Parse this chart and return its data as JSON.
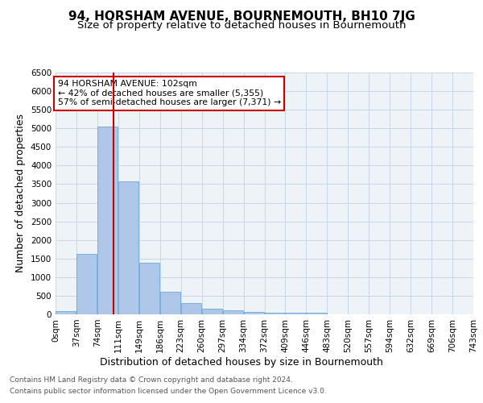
{
  "title": "94, HORSHAM AVENUE, BOURNEMOUTH, BH10 7JG",
  "subtitle": "Size of property relative to detached houses in Bournemouth",
  "xlabel": "Distribution of detached houses by size in Bournemouth",
  "ylabel": "Number of detached properties",
  "footer_line1": "Contains HM Land Registry data © Crown copyright and database right 2024.",
  "footer_line2": "Contains public sector information licensed under the Open Government Licence v3.0.",
  "bin_labels": [
    "0sqm",
    "37sqm",
    "74sqm",
    "111sqm",
    "149sqm",
    "186sqm",
    "223sqm",
    "260sqm",
    "297sqm",
    "334sqm",
    "372sqm",
    "409sqm",
    "446sqm",
    "483sqm",
    "520sqm",
    "557sqm",
    "594sqm",
    "632sqm",
    "669sqm",
    "706sqm",
    "743sqm"
  ],
  "bar_values": [
    80,
    1620,
    5050,
    3570,
    1390,
    600,
    310,
    155,
    100,
    60,
    50,
    50,
    50,
    0,
    0,
    0,
    0,
    0,
    0,
    0
  ],
  "bar_color": "#aec6e8",
  "bar_edge_color": "#5a9fd4",
  "grid_color": "#c8d8e8",
  "background_color": "#eef3f8",
  "property_size": 102,
  "property_label": "94 HORSHAM AVENUE: 102sqm",
  "annotation_line1": "← 42% of detached houses are smaller (5,355)",
  "annotation_line2": "57% of semi-detached houses are larger (7,371) →",
  "vline_color": "#cc0000",
  "annotation_box_color": "#cc0000",
  "ylim": [
    0,
    6500
  ],
  "bin_width": 37,
  "title_fontsize": 11,
  "subtitle_fontsize": 9.5,
  "axis_fontsize": 9,
  "tick_fontsize": 7.5,
  "footer_fontsize": 6.5
}
